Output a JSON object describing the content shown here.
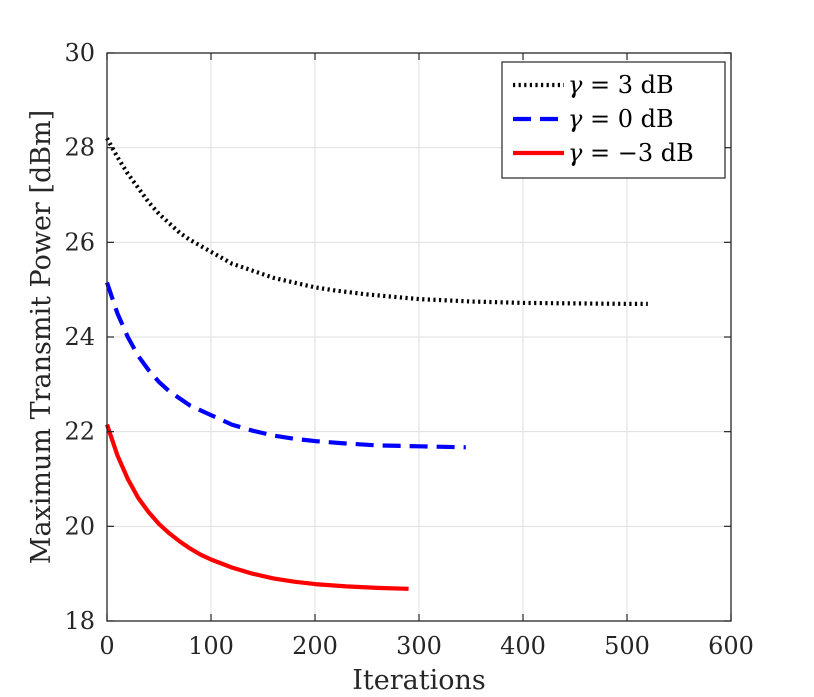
{
  "chart_data": {
    "type": "line",
    "title": "",
    "xlabel": "Iterations",
    "ylabel": "Maximum Transmit Power [dBm]",
    "xlim": [
      0,
      600
    ],
    "ylim": [
      18,
      30
    ],
    "xticks": [
      0,
      100,
      200,
      300,
      400,
      500,
      600
    ],
    "yticks": [
      18,
      20,
      22,
      24,
      26,
      28,
      30
    ],
    "grid": true,
    "legend_position": "top-right",
    "series": [
      {
        "name": "γ = 3 dB",
        "symbol": "γ",
        "value_text": " = 3 dB",
        "color": "#000000",
        "style": "dotted",
        "x": [
          0,
          10,
          20,
          30,
          40,
          50,
          60,
          70,
          80,
          100,
          120,
          140,
          160,
          180,
          200,
          220,
          250,
          280,
          300,
          350,
          400,
          450,
          500,
          520
        ],
        "y": [
          28.2,
          27.8,
          27.45,
          27.15,
          26.85,
          26.6,
          26.4,
          26.2,
          26.05,
          25.8,
          25.55,
          25.4,
          25.25,
          25.15,
          25.05,
          24.98,
          24.9,
          24.84,
          24.8,
          24.75,
          24.72,
          24.71,
          24.7,
          24.7
        ]
      },
      {
        "name": "γ = 0 dB",
        "symbol": "γ",
        "value_text": " = 0 dB",
        "color": "#0000ff",
        "style": "dashed",
        "x": [
          0,
          10,
          20,
          30,
          40,
          50,
          60,
          70,
          80,
          100,
          120,
          140,
          160,
          180,
          200,
          230,
          260,
          300,
          345
        ],
        "y": [
          25.15,
          24.5,
          24.0,
          23.6,
          23.3,
          23.05,
          22.85,
          22.7,
          22.55,
          22.35,
          22.15,
          22.02,
          21.92,
          21.85,
          21.8,
          21.75,
          21.71,
          21.69,
          21.67
        ]
      },
      {
        "name": "γ = −3 dB",
        "symbol": "γ",
        "value_text": " = −3 dB",
        "color": "#ff0000",
        "style": "solid",
        "x": [
          0,
          10,
          20,
          30,
          40,
          50,
          60,
          70,
          80,
          90,
          100,
          120,
          140,
          160,
          180,
          200,
          230,
          260,
          290
        ],
        "y": [
          22.15,
          21.5,
          21.0,
          20.6,
          20.3,
          20.05,
          19.85,
          19.68,
          19.53,
          19.4,
          19.3,
          19.13,
          19.0,
          18.9,
          18.83,
          18.78,
          18.73,
          18.7,
          18.68
        ]
      }
    ]
  }
}
